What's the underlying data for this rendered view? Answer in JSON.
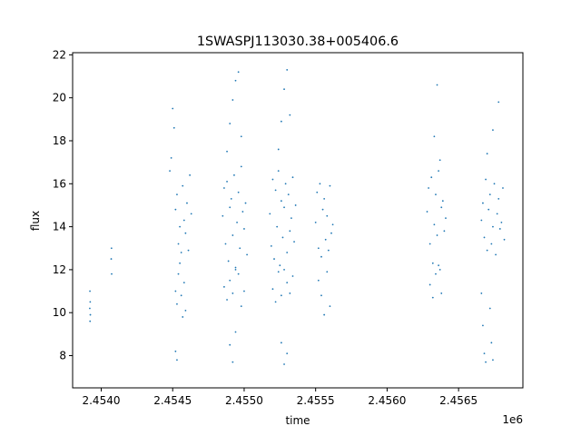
{
  "chart_data": {
    "type": "scatter",
    "title": "1SWASPJ113030.38+005406.6",
    "xlabel": "time",
    "ylabel": "flux",
    "x_offset_label": "1e6",
    "xlim": [
      2453800,
      2456950
    ],
    "ylim": [
      6.5,
      22.1
    ],
    "x_ticks": [
      2454000,
      2454500,
      2455000,
      2455500,
      2456000,
      2456500
    ],
    "x_tick_labels": [
      "2.4540",
      "2.4545",
      "2.4550",
      "2.4555",
      "2.4560",
      "2.4565"
    ],
    "y_ticks": [
      8,
      10,
      12,
      14,
      16,
      18,
      20,
      22
    ],
    "y_tick_labels": [
      "8",
      "10",
      "12",
      "14",
      "16",
      "18",
      "20",
      "22"
    ],
    "grid": false,
    "marker_color": "#1f77b4",
    "series": [
      {
        "x": [
          2453920,
          2453921,
          2453922,
          2453923,
          2453924,
          2454070,
          2454072,
          2454073,
          2454520,
          2454530,
          2454540,
          2454550,
          2454560,
          2454570,
          2454580,
          2454590,
          2454600,
          2454610,
          2454620,
          2454630,
          2454520,
          2454530,
          2454540,
          2454550,
          2454560,
          2454570,
          2454580,
          2454590,
          2454480,
          2454490,
          2454500,
          2454510,
          2454520,
          2454530,
          2454850,
          2454860,
          2454870,
          2454880,
          2454890,
          2454900,
          2454910,
          2454920,
          2454930,
          2454940,
          2454950,
          2454960,
          2454970,
          2454980,
          2454990,
          2455000,
          2455010,
          2455020,
          2454860,
          2454880,
          2454900,
          2454920,
          2454940,
          2454960,
          2454980,
          2455000,
          2454880,
          2454900,
          2454920,
          2454940,
          2454960,
          2454980,
          2454900,
          2454920,
          2454940,
          2455180,
          2455190,
          2455200,
          2455210,
          2455220,
          2455230,
          2455240,
          2455250,
          2455260,
          2455270,
          2455280,
          2455290,
          2455300,
          2455310,
          2455320,
          2455330,
          2455340,
          2455350,
          2455360,
          2455200,
          2455220,
          2455240,
          2455260,
          2455280,
          2455300,
          2455320,
          2455340,
          2455240,
          2455260,
          2455280,
          2455300,
          2455320,
          2455260,
          2455280,
          2455300,
          2455500,
          2455510,
          2455520,
          2455530,
          2455540,
          2455550,
          2455560,
          2455570,
          2455580,
          2455590,
          2455600,
          2455610,
          2455620,
          2455520,
          2455540,
          2455560,
          2455580,
          2455600,
          2456280,
          2456290,
          2456300,
          2456310,
          2456320,
          2456330,
          2456340,
          2456350,
          2456360,
          2456370,
          2456380,
          2456390,
          2456400,
          2456410,
          2456300,
          2456320,
          2456340,
          2456360,
          2456380,
          2456330,
          2456350,
          2456370,
          2456660,
          2456670,
          2456680,
          2456690,
          2456700,
          2456710,
          2456720,
          2456730,
          2456740,
          2456750,
          2456760,
          2456770,
          2456780,
          2456790,
          2456800,
          2456810,
          2456820,
          2456660,
          2456670,
          2456680,
          2456690,
          2456720,
          2456730,
          2456740,
          2456700,
          2456740,
          2456780
        ],
        "y": [
          10.2,
          11.0,
          9.6,
          10.5,
          9.9,
          12.5,
          13.0,
          11.8,
          14.8,
          15.5,
          13.2,
          14.0,
          12.8,
          15.9,
          14.3,
          13.7,
          15.1,
          12.9,
          16.4,
          14.6,
          11.0,
          10.4,
          11.8,
          12.3,
          10.8,
          9.8,
          11.4,
          10.1,
          16.6,
          17.2,
          19.5,
          18.6,
          8.2,
          7.8,
          14.5,
          15.8,
          13.2,
          16.1,
          12.4,
          14.9,
          15.3,
          13.6,
          16.4,
          12.0,
          14.2,
          15.6,
          13.0,
          16.8,
          14.7,
          13.9,
          15.1,
          12.7,
          11.2,
          10.6,
          11.5,
          10.9,
          12.1,
          11.8,
          10.3,
          11.0,
          17.5,
          18.8,
          19.9,
          20.8,
          21.2,
          18.2,
          8.5,
          7.7,
          9.1,
          14.6,
          13.1,
          16.2,
          12.5,
          15.7,
          14.0,
          16.6,
          12.2,
          15.2,
          13.5,
          14.9,
          16.0,
          12.8,
          15.5,
          13.8,
          14.4,
          16.3,
          13.3,
          15.0,
          11.1,
          10.5,
          11.9,
          10.8,
          12.0,
          11.4,
          10.9,
          11.7,
          17.6,
          18.9,
          20.4,
          21.3,
          19.2,
          8.6,
          7.6,
          8.1,
          14.2,
          15.6,
          13.0,
          16.0,
          12.6,
          14.8,
          15.3,
          13.4,
          14.5,
          12.9,
          15.9,
          13.7,
          14.1,
          11.5,
          10.8,
          9.9,
          11.9,
          10.3,
          14.7,
          15.8,
          13.2,
          16.3,
          12.3,
          14.1,
          15.5,
          13.6,
          16.6,
          12.0,
          14.9,
          15.2,
          13.8,
          14.4,
          11.3,
          10.7,
          11.8,
          12.2,
          10.9,
          18.2,
          20.6,
          17.1,
          14.3,
          15.1,
          13.5,
          16.2,
          12.9,
          14.8,
          15.5,
          13.2,
          14.0,
          16.0,
          12.7,
          14.6,
          15.3,
          13.9,
          14.2,
          15.8,
          13.4,
          10.9,
          9.4,
          8.1,
          7.7,
          10.2,
          8.6,
          7.8,
          17.4,
          18.5,
          19.8
        ]
      }
    ]
  }
}
